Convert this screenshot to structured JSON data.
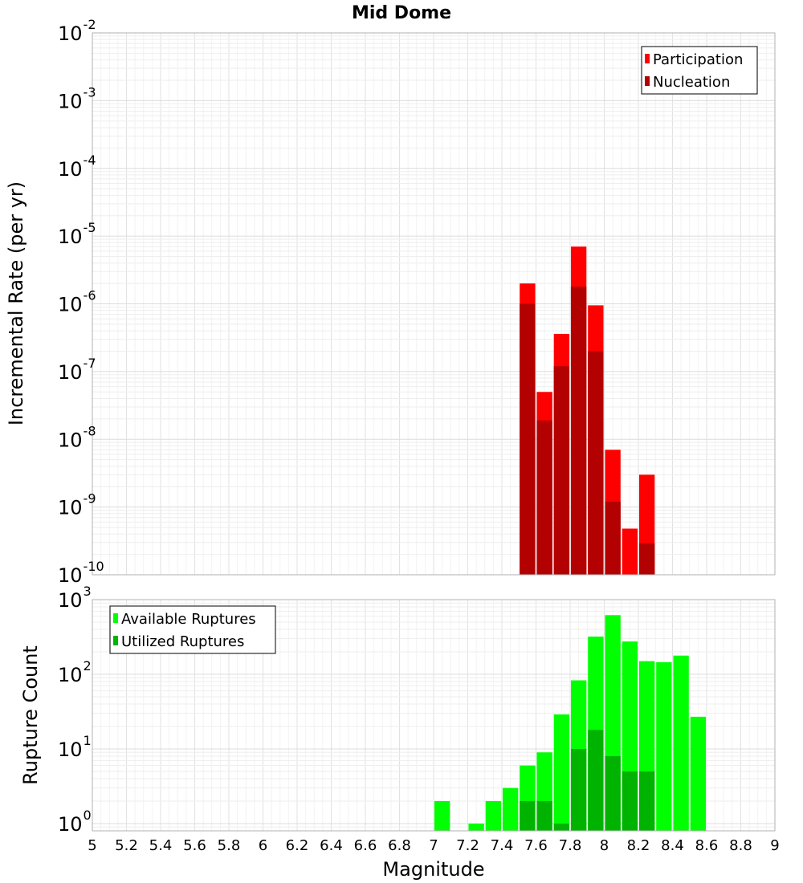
{
  "chart_data": [
    {
      "type": "bar",
      "title": "Mid Dome",
      "xlabel": "",
      "ylabel": "Incremental Rate (per yr)",
      "yscale": "log",
      "xlim": [
        5,
        9
      ],
      "ylim": [
        1e-10,
        0.01
      ],
      "y_tick_labels": [
        {
          "base": "10",
          "exp": "-10"
        },
        {
          "base": "10",
          "exp": "-9"
        },
        {
          "base": "10",
          "exp": "-8"
        },
        {
          "base": "10",
          "exp": "-7"
        },
        {
          "base": "10",
          "exp": "-6"
        },
        {
          "base": "10",
          "exp": "-5"
        },
        {
          "base": "10",
          "exp": "-4"
        },
        {
          "base": "10",
          "exp": "-3"
        },
        {
          "base": "10",
          "exp": "-2"
        }
      ],
      "legend_position": "top-right",
      "grid": true,
      "series": [
        {
          "name": "Participation",
          "color": "#ff0000",
          "x": [
            7.55,
            7.65,
            7.75,
            7.85,
            7.95,
            8.05,
            8.15,
            8.25
          ],
          "values": [
            2e-06,
            5e-08,
            3.6e-07,
            7e-06,
            9.5e-07,
            7e-09,
            4.8e-10,
            3e-09
          ]
        },
        {
          "name": "Nucleation",
          "color": "#b30000",
          "x": [
            7.55,
            7.65,
            7.75,
            7.85,
            7.95,
            8.05,
            8.15,
            8.25
          ],
          "values": [
            1e-06,
            1.9e-08,
            1.2e-07,
            1.8e-06,
            2e-07,
            1.2e-09,
            null,
            2.9e-10
          ]
        }
      ]
    },
    {
      "type": "bar",
      "title": "",
      "xlabel": "Magnitude",
      "ylabel": "Rupture Count",
      "yscale": "log",
      "xlim": [
        5,
        9
      ],
      "ylim": [
        0.8,
        1000
      ],
      "x_ticks": [
        "5",
        "5.2",
        "5.4",
        "5.6",
        "5.8",
        "6",
        "6.2",
        "6.4",
        "6.6",
        "6.8",
        "7",
        "7.2",
        "7.4",
        "7.6",
        "7.8",
        "8",
        "8.2",
        "8.4",
        "8.6",
        "8.8",
        "9"
      ],
      "y_tick_labels": [
        {
          "base": "10",
          "exp": "0"
        },
        {
          "base": "10",
          "exp": "1"
        },
        {
          "base": "10",
          "exp": "2"
        },
        {
          "base": "10",
          "exp": "3"
        }
      ],
      "legend_position": "top-left",
      "grid": true,
      "series": [
        {
          "name": "Available Ruptures",
          "color": "#00ff00",
          "x": [
            7.05,
            7.25,
            7.35,
            7.45,
            7.55,
            7.65,
            7.75,
            7.85,
            7.95,
            8.05,
            8.15,
            8.25,
            8.35,
            8.45,
            8.55
          ],
          "values": [
            2,
            1,
            2,
            3,
            6,
            9,
            29,
            83,
            320,
            620,
            275,
            150,
            145,
            178,
            27
          ]
        },
        {
          "name": "Utilized Ruptures",
          "color": "#00b300",
          "x": [
            7.55,
            7.65,
            7.75,
            7.85,
            7.95,
            8.05,
            8.15,
            8.25
          ],
          "values": [
            2,
            2,
            1,
            10,
            18,
            8,
            5,
            5
          ]
        }
      ]
    }
  ]
}
